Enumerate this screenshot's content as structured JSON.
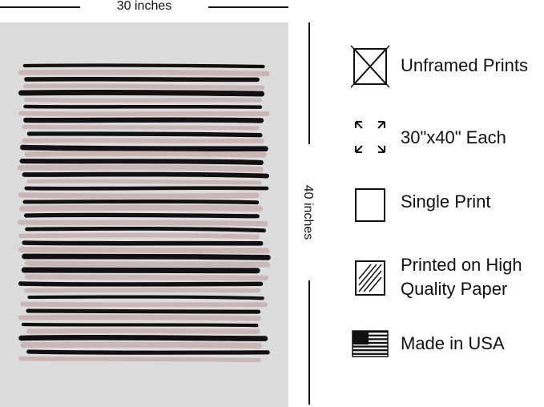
{
  "dimensions": {
    "width": "30 inches",
    "height": "40 inches"
  },
  "features": [
    {
      "lines": [
        "Unframed Prints"
      ]
    },
    {
      "lines": [
        "30\"x40\" Each"
      ]
    },
    {
      "lines": [
        "Single Print"
      ]
    },
    {
      "lines": [
        "Printed on High",
        "Quality Paper"
      ]
    },
    {
      "lines": [
        "Made in USA"
      ]
    }
  ]
}
